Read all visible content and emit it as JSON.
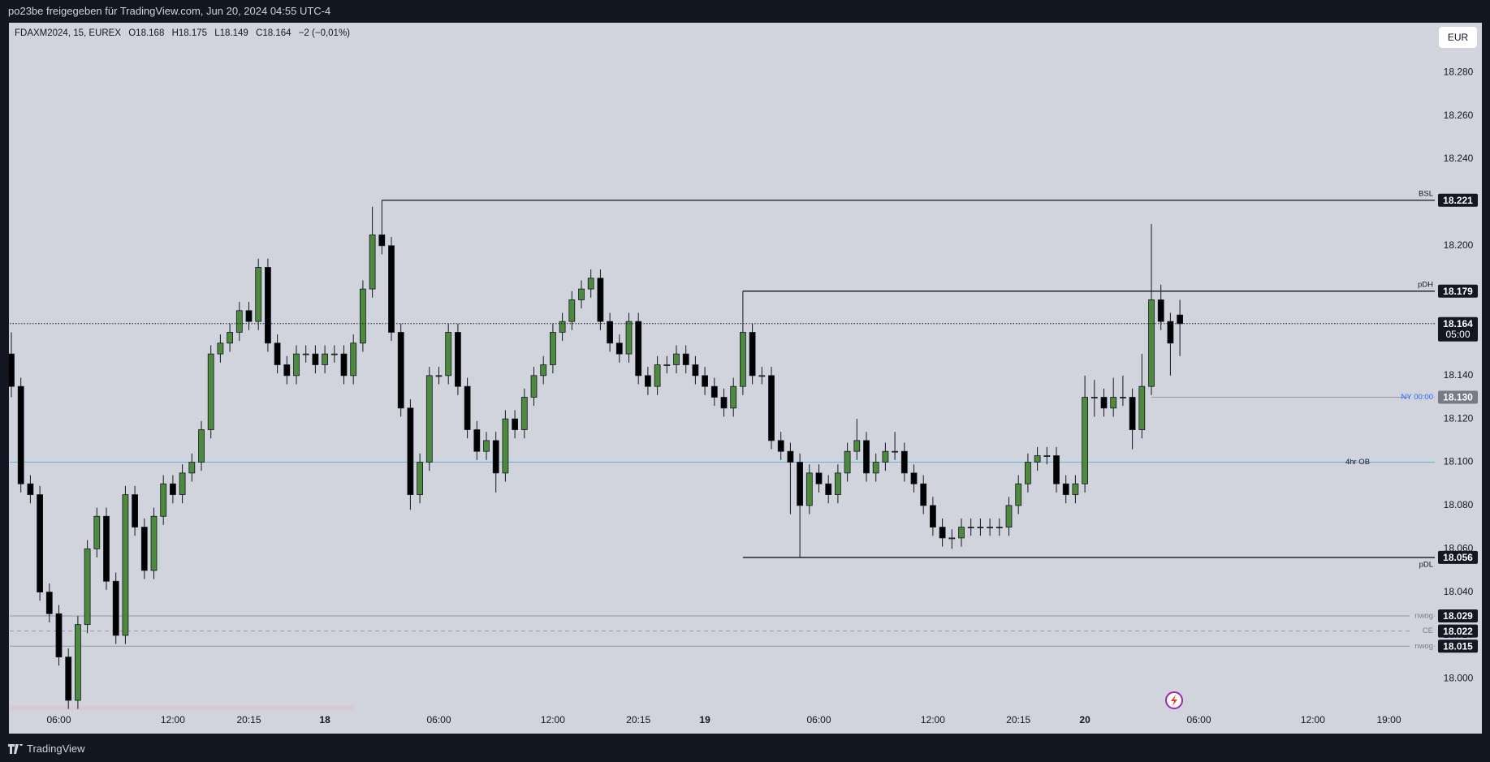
{
  "header": {
    "title": "po23be freigegeben für TradingView.com, Jun 20, 2024 04:55 UTC-4"
  },
  "chart_data": {
    "type": "candlestick",
    "legend": {
      "symbol": "FDAXM2024, 15, EUREX",
      "open": "O18.168",
      "high": "H18.175",
      "low": "L18.149",
      "close": "C18.164",
      "change": "−2 (−0,01%)"
    },
    "currency": "EUR",
    "categories": [
      null,
      null,
      null,
      null,
      null,
      "06:00",
      null,
      null,
      null,
      null,
      null,
      null,
      null,
      null,
      null,
      null,
      null,
      "12:00",
      null,
      null,
      null,
      null,
      null,
      null,
      null,
      "20:15",
      null,
      null,
      null,
      null,
      null,
      null,
      null,
      "18",
      null,
      null,
      null,
      null,
      null,
      null,
      null,
      null,
      null,
      null,
      null,
      "06:00",
      null,
      null,
      null,
      null,
      null,
      null,
      null,
      null,
      null,
      null,
      null,
      "12:00",
      null,
      null,
      null,
      null,
      null,
      null,
      null,
      null,
      "20:15",
      null,
      null,
      null,
      null,
      null,
      null,
      "19",
      null,
      null,
      null,
      null,
      null,
      null,
      null,
      null,
      null,
      null,
      null,
      "06:00",
      null,
      null,
      null,
      null,
      null,
      null,
      null,
      null,
      null,
      null,
      null,
      "12:00",
      null,
      null,
      null,
      null,
      null,
      null,
      null,
      null,
      "20:15",
      null,
      null,
      null,
      null,
      null,
      null,
      "20",
      null,
      null,
      null,
      null,
      null,
      null,
      null,
      null,
      null,
      null,
      null,
      "06:00",
      null,
      null,
      null,
      null,
      null,
      null,
      null,
      null,
      null,
      null,
      null,
      "12:00",
      null,
      null,
      null,
      null,
      null,
      null,
      null,
      "19:00"
    ],
    "open": [
      18.15,
      18.135,
      18.09,
      18.085,
      18.04,
      18.03,
      18.01,
      17.99,
      18.025,
      18.06,
      18.075,
      18.045,
      18.02,
      18.085,
      18.07,
      18.05,
      18.075,
      18.09,
      18.085,
      18.095,
      18.1,
      18.115,
      18.15,
      18.155,
      18.16,
      18.17,
      18.165,
      18.19,
      18.155,
      18.145,
      18.14,
      18.15,
      18.15,
      18.145,
      18.15,
      18.15,
      18.14,
      18.155,
      18.18,
      18.205,
      18.2,
      18.16,
      18.125,
      18.085,
      18.1,
      18.14,
      18.14,
      18.16,
      18.135,
      18.115,
      18.105,
      18.11,
      18.095,
      18.12,
      18.115,
      18.13,
      18.14,
      18.145,
      18.16,
      18.165,
      18.175,
      18.18,
      18.185,
      18.165,
      18.155,
      18.15,
      18.165,
      18.14,
      18.135,
      18.145,
      18.145,
      18.15,
      18.145,
      18.14,
      18.135,
      18.13,
      18.125,
      18.135,
      18.16,
      18.14,
      18.14,
      18.11,
      18.105,
      18.1,
      18.08,
      18.095,
      18.09,
      18.085,
      18.095,
      18.105,
      18.11,
      18.095,
      18.1,
      18.105,
      18.105,
      18.095,
      18.09,
      18.08,
      18.07,
      18.065,
      18.065,
      18.07,
      18.07,
      18.07,
      18.07,
      18.07,
      18.08,
      18.09,
      18.1,
      18.103,
      18.103,
      18.09,
      18.085,
      18.09,
      18.13,
      18.13,
      18.125,
      18.13,
      18.13,
      18.115,
      18.135,
      18.175,
      18.165,
      18.168,
      null,
      null,
      null,
      null,
      null,
      null,
      null,
      null,
      null,
      null,
      null,
      null,
      null,
      null,
      null,
      null,
      null,
      null,
      null,
      null,
      null,
      null
    ],
    "high": [
      18.16,
      18.139,
      18.094,
      18.089,
      18.044,
      18.034,
      18.014,
      18.029,
      18.064,
      18.079,
      18.079,
      18.049,
      18.089,
      18.089,
      18.074,
      18.079,
      18.094,
      18.094,
      18.099,
      18.104,
      18.119,
      18.154,
      18.159,
      18.164,
      18.174,
      18.174,
      18.194,
      18.194,
      18.159,
      18.149,
      18.154,
      18.154,
      18.154,
      18.154,
      18.154,
      18.154,
      18.159,
      18.184,
      18.218,
      18.221,
      18.204,
      18.164,
      18.129,
      18.104,
      18.144,
      18.144,
      18.164,
      18.164,
      18.139,
      18.119,
      18.114,
      18.114,
      18.124,
      18.124,
      18.134,
      18.144,
      18.149,
      18.164,
      18.169,
      18.179,
      18.184,
      18.189,
      18.189,
      18.169,
      18.159,
      18.169,
      18.169,
      18.144,
      18.149,
      18.149,
      18.154,
      18.154,
      18.149,
      18.144,
      18.139,
      18.134,
      18.139,
      18.179,
      18.164,
      18.144,
      18.144,
      18.114,
      18.109,
      18.104,
      18.099,
      18.099,
      18.094,
      18.099,
      18.109,
      18.12,
      18.114,
      18.104,
      18.109,
      18.114,
      18.109,
      18.099,
      18.094,
      18.084,
      18.074,
      18.069,
      18.074,
      18.074,
      18.074,
      18.074,
      18.074,
      18.084,
      18.094,
      18.104,
      18.107,
      18.107,
      18.107,
      18.094,
      18.094,
      18.14,
      18.138,
      18.134,
      18.139,
      18.14,
      18.134,
      18.15,
      18.21,
      18.182,
      18.169,
      18.175,
      null,
      null,
      null,
      null,
      null,
      null,
      null,
      null,
      null,
      null,
      null,
      null,
      null,
      null,
      null,
      null,
      null,
      null,
      null,
      null,
      null,
      null
    ],
    "low": [
      18.13,
      18.086,
      18.081,
      18.036,
      18.026,
      18.006,
      17.986,
      17.986,
      18.021,
      18.056,
      18.041,
      18.016,
      18.016,
      18.066,
      18.046,
      18.046,
      18.071,
      18.081,
      18.081,
      18.091,
      18.096,
      18.111,
      18.146,
      18.151,
      18.156,
      18.161,
      18.161,
      18.151,
      18.141,
      18.136,
      18.136,
      18.146,
      18.141,
      18.141,
      18.146,
      18.136,
      18.136,
      18.151,
      18.176,
      18.196,
      18.156,
      18.121,
      18.078,
      18.081,
      18.096,
      18.136,
      18.136,
      18.131,
      18.111,
      18.101,
      18.101,
      18.086,
      18.091,
      18.111,
      18.111,
      18.126,
      18.136,
      18.141,
      18.156,
      18.161,
      18.171,
      18.176,
      18.161,
      18.151,
      18.146,
      18.146,
      18.136,
      18.131,
      18.131,
      18.141,
      18.141,
      18.141,
      18.136,
      18.131,
      18.126,
      18.121,
      18.121,
      18.131,
      18.136,
      18.136,
      18.106,
      18.101,
      18.076,
      18.056,
      18.076,
      18.086,
      18.081,
      18.081,
      18.091,
      18.101,
      18.091,
      18.091,
      18.096,
      18.101,
      18.091,
      18.086,
      18.076,
      18.066,
      18.061,
      18.06,
      18.061,
      18.066,
      18.066,
      18.066,
      18.066,
      18.066,
      18.076,
      18.086,
      18.096,
      18.099,
      18.086,
      18.081,
      18.081,
      18.086,
      18.121,
      18.121,
      18.121,
      18.126,
      18.106,
      18.111,
      18.131,
      18.161,
      18.14,
      18.149,
      null,
      null,
      null,
      null,
      null,
      null,
      null,
      null,
      null,
      null,
      null,
      null,
      null,
      null,
      null,
      null,
      null,
      null,
      null,
      null,
      null,
      null
    ],
    "close": [
      18.135,
      18.09,
      18.085,
      18.04,
      18.03,
      18.01,
      17.99,
      18.025,
      18.06,
      18.075,
      18.045,
      18.02,
      18.085,
      18.07,
      18.05,
      18.075,
      18.09,
      18.085,
      18.095,
      18.1,
      18.115,
      18.15,
      18.155,
      18.16,
      18.17,
      18.165,
      18.19,
      18.155,
      18.145,
      18.14,
      18.15,
      18.15,
      18.145,
      18.15,
      18.15,
      18.14,
      18.155,
      18.18,
      18.205,
      18.2,
      18.16,
      18.125,
      18.085,
      18.1,
      18.14,
      18.14,
      18.16,
      18.135,
      18.115,
      18.105,
      18.11,
      18.095,
      18.12,
      18.115,
      18.13,
      18.14,
      18.145,
      18.16,
      18.165,
      18.175,
      18.18,
      18.185,
      18.165,
      18.155,
      18.15,
      18.165,
      18.14,
      18.135,
      18.145,
      18.145,
      18.15,
      18.145,
      18.14,
      18.135,
      18.13,
      18.125,
      18.135,
      18.16,
      18.14,
      18.14,
      18.11,
      18.105,
      18.1,
      18.08,
      18.095,
      18.09,
      18.085,
      18.095,
      18.105,
      18.11,
      18.095,
      18.1,
      18.105,
      18.105,
      18.095,
      18.09,
      18.08,
      18.07,
      18.065,
      18.065,
      18.07,
      18.07,
      18.07,
      18.07,
      18.07,
      18.08,
      18.09,
      18.1,
      18.103,
      18.103,
      18.09,
      18.085,
      18.09,
      18.13,
      18.13,
      18.125,
      18.13,
      18.13,
      18.115,
      18.135,
      18.175,
      18.165,
      18.155,
      18.164,
      null,
      null,
      null,
      null,
      null,
      null,
      null,
      null,
      null,
      null,
      null,
      null,
      null,
      null,
      null,
      null,
      null,
      null,
      null,
      null,
      null,
      null
    ],
    "up_color": "#4e8a3e",
    "down_color": "#000000",
    "ylim": [
      17.975,
      18.303
    ],
    "yticks": [
      {
        "value": 18,
        "label": "18.000"
      },
      {
        "value": 18.02,
        "label": "18.020"
      },
      {
        "value": 18.04,
        "label": "18.040"
      },
      {
        "value": 18.06,
        "label": "18.060"
      },
      {
        "value": 18.08,
        "label": "18.080"
      },
      {
        "value": 18.1,
        "label": "18.100"
      },
      {
        "value": 18.12,
        "label": "18.120"
      },
      {
        "value": 18.14,
        "label": "18.140"
      },
      {
        "value": 18.16,
        "label": "18.160"
      },
      {
        "value": 18.18,
        "label": "18.180"
      },
      {
        "value": 18.2,
        "label": "18.200"
      },
      {
        "value": 18.22,
        "label": "18.220"
      },
      {
        "value": 18.24,
        "label": "18.240"
      },
      {
        "value": 18.26,
        "label": "18.260"
      },
      {
        "value": 18.28,
        "label": "18.280"
      }
    ],
    "grid": false,
    "last_price": {
      "value": 18.164,
      "label": "18.164",
      "countdown": "05:00"
    },
    "levels": [
      {
        "name": "BSL",
        "value": 18.221,
        "label": "18.221"
      },
      {
        "name": "pDH",
        "value": 18.179,
        "label": "18.179"
      },
      {
        "name": "NY 00:00",
        "value": 18.13,
        "label": "18.130"
      },
      {
        "name": "4hr OB",
        "value": 18.1
      },
      {
        "name": "pDL",
        "value": 18.056,
        "label": "18.056"
      },
      {
        "name": "nwog",
        "value": 18.029,
        "label": "18.029"
      },
      {
        "name": "CE",
        "value": 18.022,
        "label": "18.022"
      },
      {
        "name": "nwog",
        "value": 18.015,
        "label": "18.015"
      }
    ]
  },
  "footer": {
    "brand": "TradingView"
  }
}
